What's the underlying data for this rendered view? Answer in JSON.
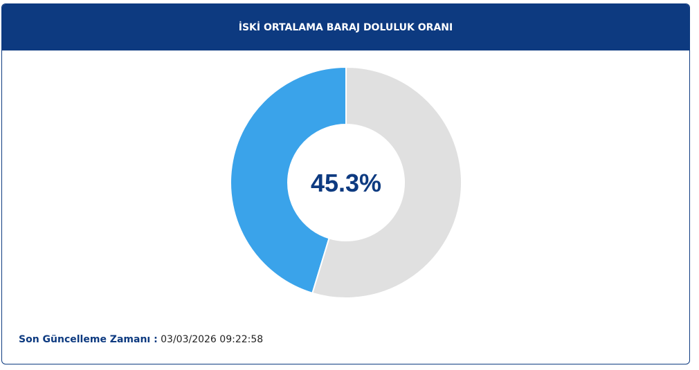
{
  "chart_data": {
    "type": "donut",
    "title": "İSKİ ORTALAMA BARAJ DOLULUK ORANI",
    "values": [
      45.3,
      54.7
    ],
    "value_labels": [
      "45.3%",
      null
    ],
    "colors": [
      "#3aa3ea",
      "#e0e0e0"
    ]
  },
  "footer": {
    "label": "Son Güncelleme Zamanı :",
    "value": "03/03/2026 09:22:58"
  }
}
